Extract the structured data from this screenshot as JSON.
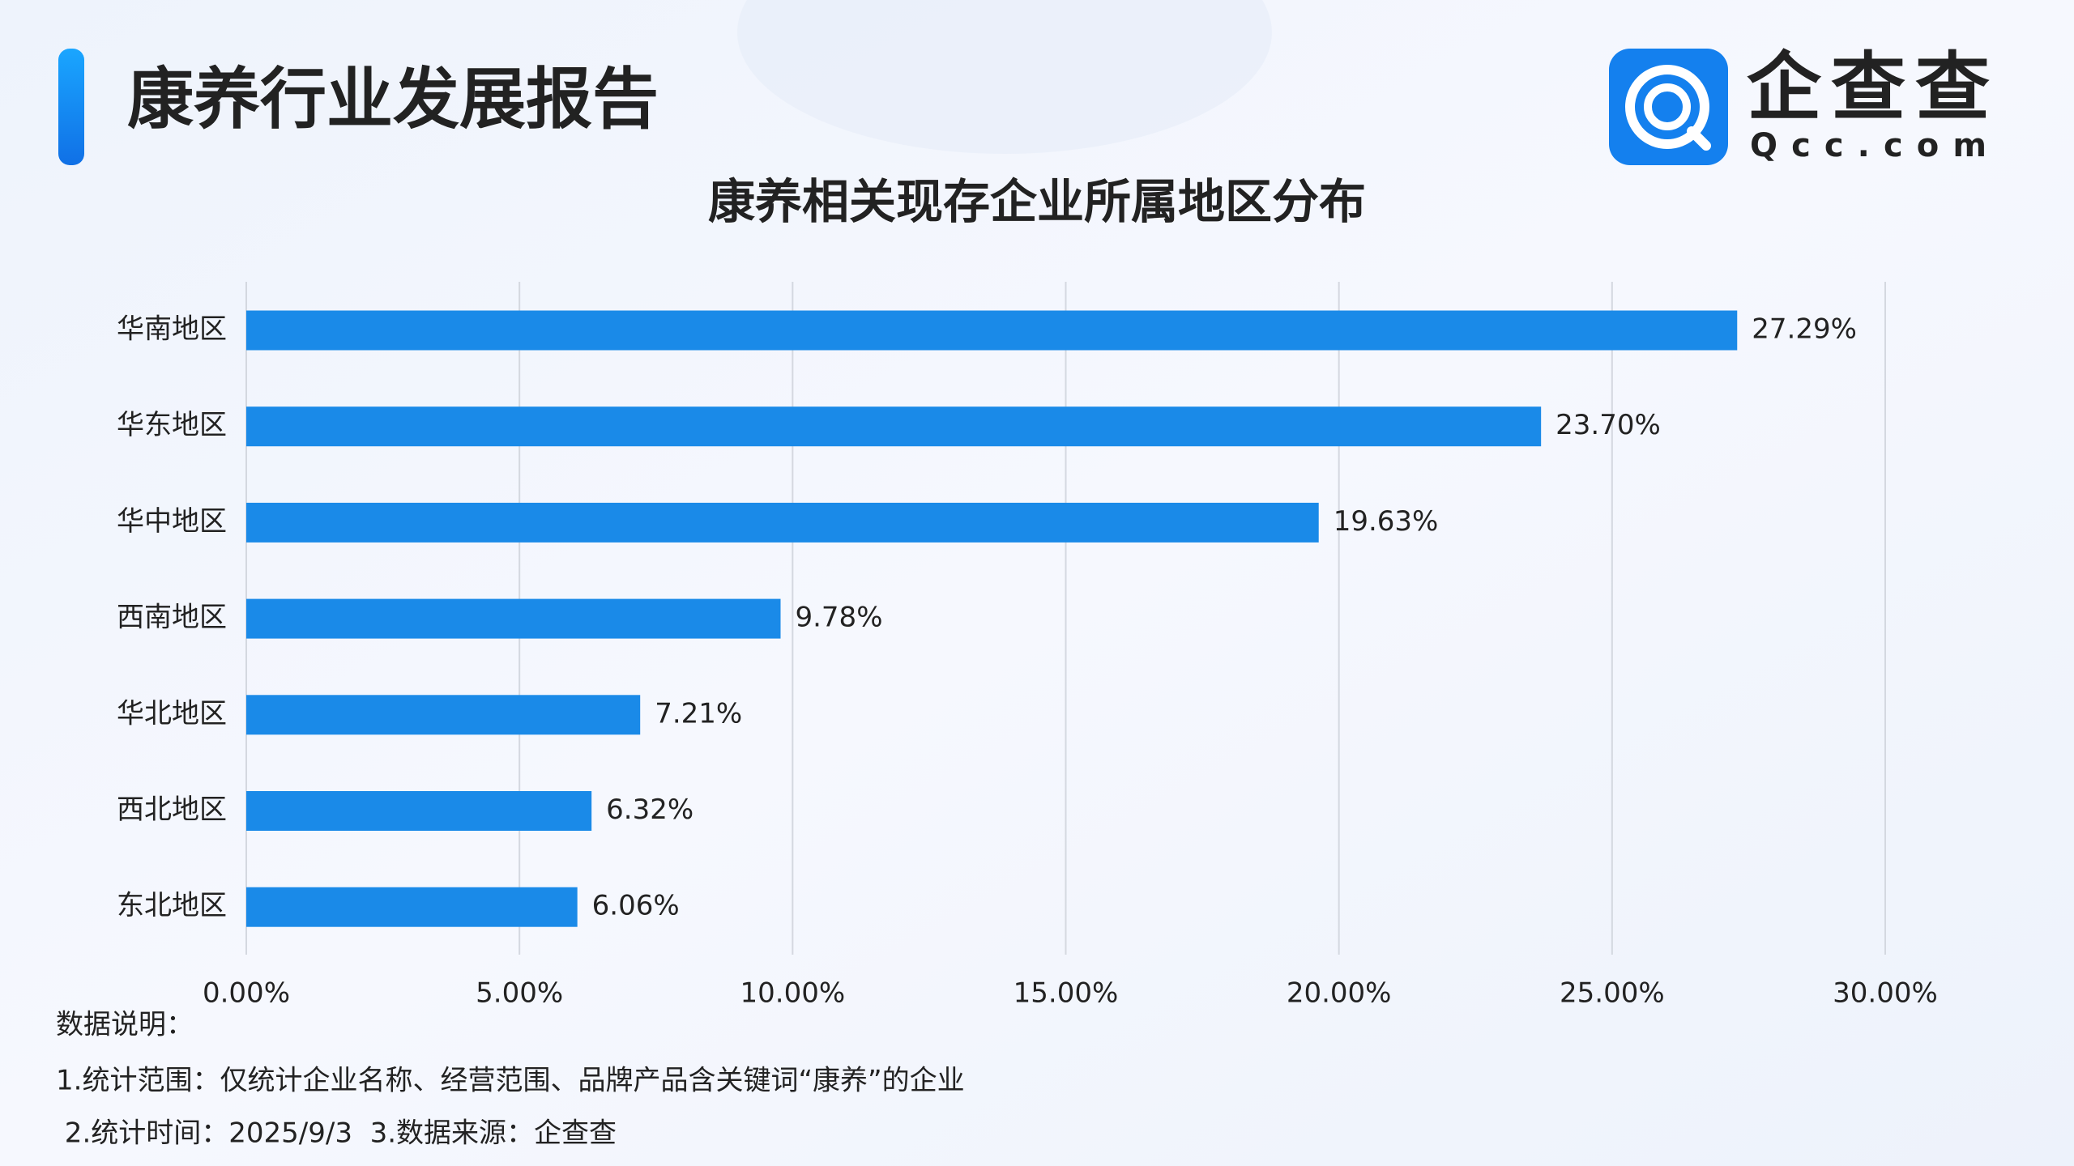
{
  "header": {
    "title": "康养行业发展报告",
    "brand": "企查查",
    "brand_domain": "Qcc.com"
  },
  "chart_data": {
    "type": "bar",
    "orientation": "horizontal",
    "title": "康养相关现存企业所属地区分布",
    "categories": [
      "华南地区",
      "华东地区",
      "华中地区",
      "西南地区",
      "华北地区",
      "西北地区",
      "东北地区"
    ],
    "values": [
      27.29,
      23.7,
      19.63,
      9.78,
      7.21,
      6.32,
      6.06
    ],
    "value_labels": [
      "27.29%",
      "23.70%",
      "19.63%",
      "9.78%",
      "7.21%",
      "6.32%",
      "6.06%"
    ],
    "color": "#1a8ae8",
    "xlim": [
      0,
      30
    ],
    "xticks": [
      {
        "value": 0,
        "label": "0.00%"
      },
      {
        "value": 5,
        "label": "5.00%"
      },
      {
        "value": 10,
        "label": "10.00%"
      },
      {
        "value": 15,
        "label": "15.00%"
      },
      {
        "value": 20,
        "label": "20.00%"
      },
      {
        "value": 25,
        "label": "25.00%"
      },
      {
        "value": 30,
        "label": "30.00%"
      }
    ],
    "grid": true
  },
  "notes": [
    "数据说明：",
    "1.统计范围：仅统计企业名称、经营范围、品牌产品含关键词“康养”的企业",
    " 2.统计时间：2025/9/3  3.数据来源：企查查"
  ]
}
